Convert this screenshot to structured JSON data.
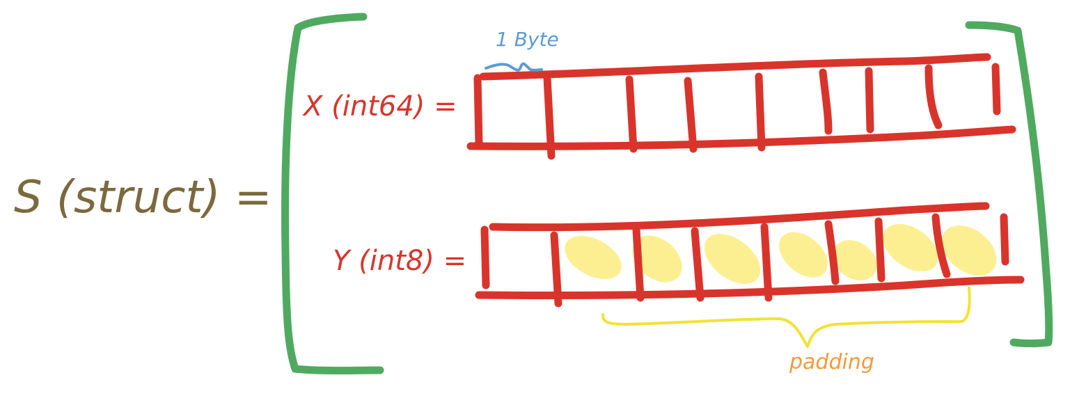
{
  "struct_label": "S (struct) =",
  "byte_annotation": "1 Byte",
  "fields": [
    {
      "label": "X (int64) =",
      "type": "int64",
      "bytes": 8,
      "padding_bytes": 0
    },
    {
      "label": "Y (int8) =",
      "type": "int8",
      "bytes": 8,
      "padding_bytes": 7
    }
  ],
  "padding_label": "padding",
  "colors": {
    "struct_text": "#7a6a3e",
    "field": "#d9342b",
    "bracket": "#4faa5f",
    "byte_brace": "#5b9bd5",
    "padding_fill": "#fbe96c",
    "padding_brace": "#f2e233",
    "padding_text": "#f39a3c"
  }
}
